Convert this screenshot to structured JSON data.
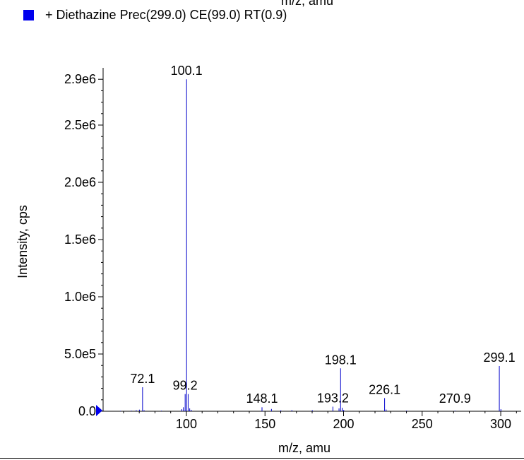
{
  "top_cut_text": "m/z, amu",
  "legend": {
    "text": "+ Diethazine Prec(299.0) CE(99.0) RT(0.9)",
    "color": "#0000ee"
  },
  "chart_data": {
    "type": "bar",
    "xlabel": "m/z, amu",
    "ylabel": "Intensity, cps",
    "xlim": [
      47,
      313
    ],
    "ylim": [
      0,
      3000000
    ],
    "x_ticks": [
      100,
      150,
      200,
      250,
      300
    ],
    "y_ticks": [
      {
        "value": 0,
        "label": "0.0"
      },
      {
        "value": 500000,
        "label": "5.0e5"
      },
      {
        "value": 1000000,
        "label": "1.0e6"
      },
      {
        "value": 1500000,
        "label": "1.5e6"
      },
      {
        "value": 2000000,
        "label": "2.0e6"
      },
      {
        "value": 2500000,
        "label": "2.5e6"
      },
      {
        "value": 2900000,
        "label": "2.9e6"
      }
    ],
    "line_color": "#0000cc",
    "peaks": [
      {
        "x": 58.1,
        "y": 4000
      },
      {
        "x": 65.0,
        "y": 5000
      },
      {
        "x": 68.1,
        "y": 9000
      },
      {
        "x": 70.1,
        "y": 14000
      },
      {
        "x": 72.1,
        "y": 210000
      },
      {
        "x": 73.1,
        "y": 9000
      },
      {
        "x": 84.1,
        "y": 5000
      },
      {
        "x": 97.1,
        "y": 18000
      },
      {
        "x": 98.1,
        "y": 35000
      },
      {
        "x": 99.2,
        "y": 150000
      },
      {
        "x": 100.1,
        "y": 2900000
      },
      {
        "x": 101.1,
        "y": 150000
      },
      {
        "x": 102.1,
        "y": 25000
      },
      {
        "x": 103.1,
        "y": 12000
      },
      {
        "x": 148.1,
        "y": 35000
      },
      {
        "x": 154.1,
        "y": 20000
      },
      {
        "x": 160.1,
        "y": 8000
      },
      {
        "x": 167.1,
        "y": 10000
      },
      {
        "x": 180.1,
        "y": 9000
      },
      {
        "x": 193.2,
        "y": 40000
      },
      {
        "x": 197.1,
        "y": 25000
      },
      {
        "x": 198.1,
        "y": 375000
      },
      {
        "x": 199.1,
        "y": 30000
      },
      {
        "x": 200.1,
        "y": 12000
      },
      {
        "x": 226.1,
        "y": 115000
      },
      {
        "x": 227.1,
        "y": 15000
      },
      {
        "x": 240.1,
        "y": 6000
      },
      {
        "x": 270.9,
        "y": 5000
      },
      {
        "x": 299.1,
        "y": 395000
      },
      {
        "x": 300.1,
        "y": 18000
      }
    ],
    "peak_labels": [
      "72.1",
      "99.2",
      "100.1",
      "148.1",
      "193.2",
      "198.1",
      "226.1",
      "270.9",
      "299.1"
    ]
  }
}
